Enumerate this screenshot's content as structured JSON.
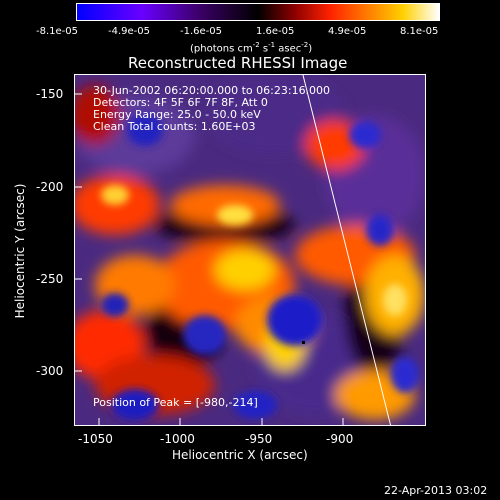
{
  "colorbar": {
    "tick_labels": [
      "-8.1e-05",
      "-4.9e-05",
      "-1.6e-05",
      "1.6e-05",
      "4.9e-05",
      "8.1e-05"
    ],
    "units_main": "(photons cm",
    "units_exp1": "-2",
    "units_mid1": " s",
    "units_exp2": "-1",
    "units_mid2": " asec",
    "units_exp3": "-2",
    "units_close": ")",
    "colors": [
      "#0000ff",
      "#6a00ff",
      "#3b0066",
      "#000000",
      "#8b0000",
      "#ff2200",
      "#ff7a00",
      "#ffd000",
      "#ffffff"
    ]
  },
  "plot": {
    "title": "Reconstructed RHESSI Image",
    "info_lines": [
      "30-Jun-2002 06:20:00.000 to 06:23:16.000",
      "Detectors: 4F 5F 6F 7F 8F, Att 0",
      "Energy Range: 25.0 - 50.0 keV",
      "Clean     Total counts: 1.60E+03"
    ],
    "peak_label": "Position of Peak = [-980,-214]",
    "xlabel": "Heliocentric X (arcsec)",
    "ylabel": "Heliocentric Y (arcsec)",
    "x_ticks": [
      "-1050",
      "-1000",
      "-950",
      "-900"
    ],
    "y_ticks": [
      "-150",
      "-200",
      "-250",
      "-300"
    ]
  },
  "footer": {
    "timestamp": "22-Apr-2013 03:02"
  }
}
